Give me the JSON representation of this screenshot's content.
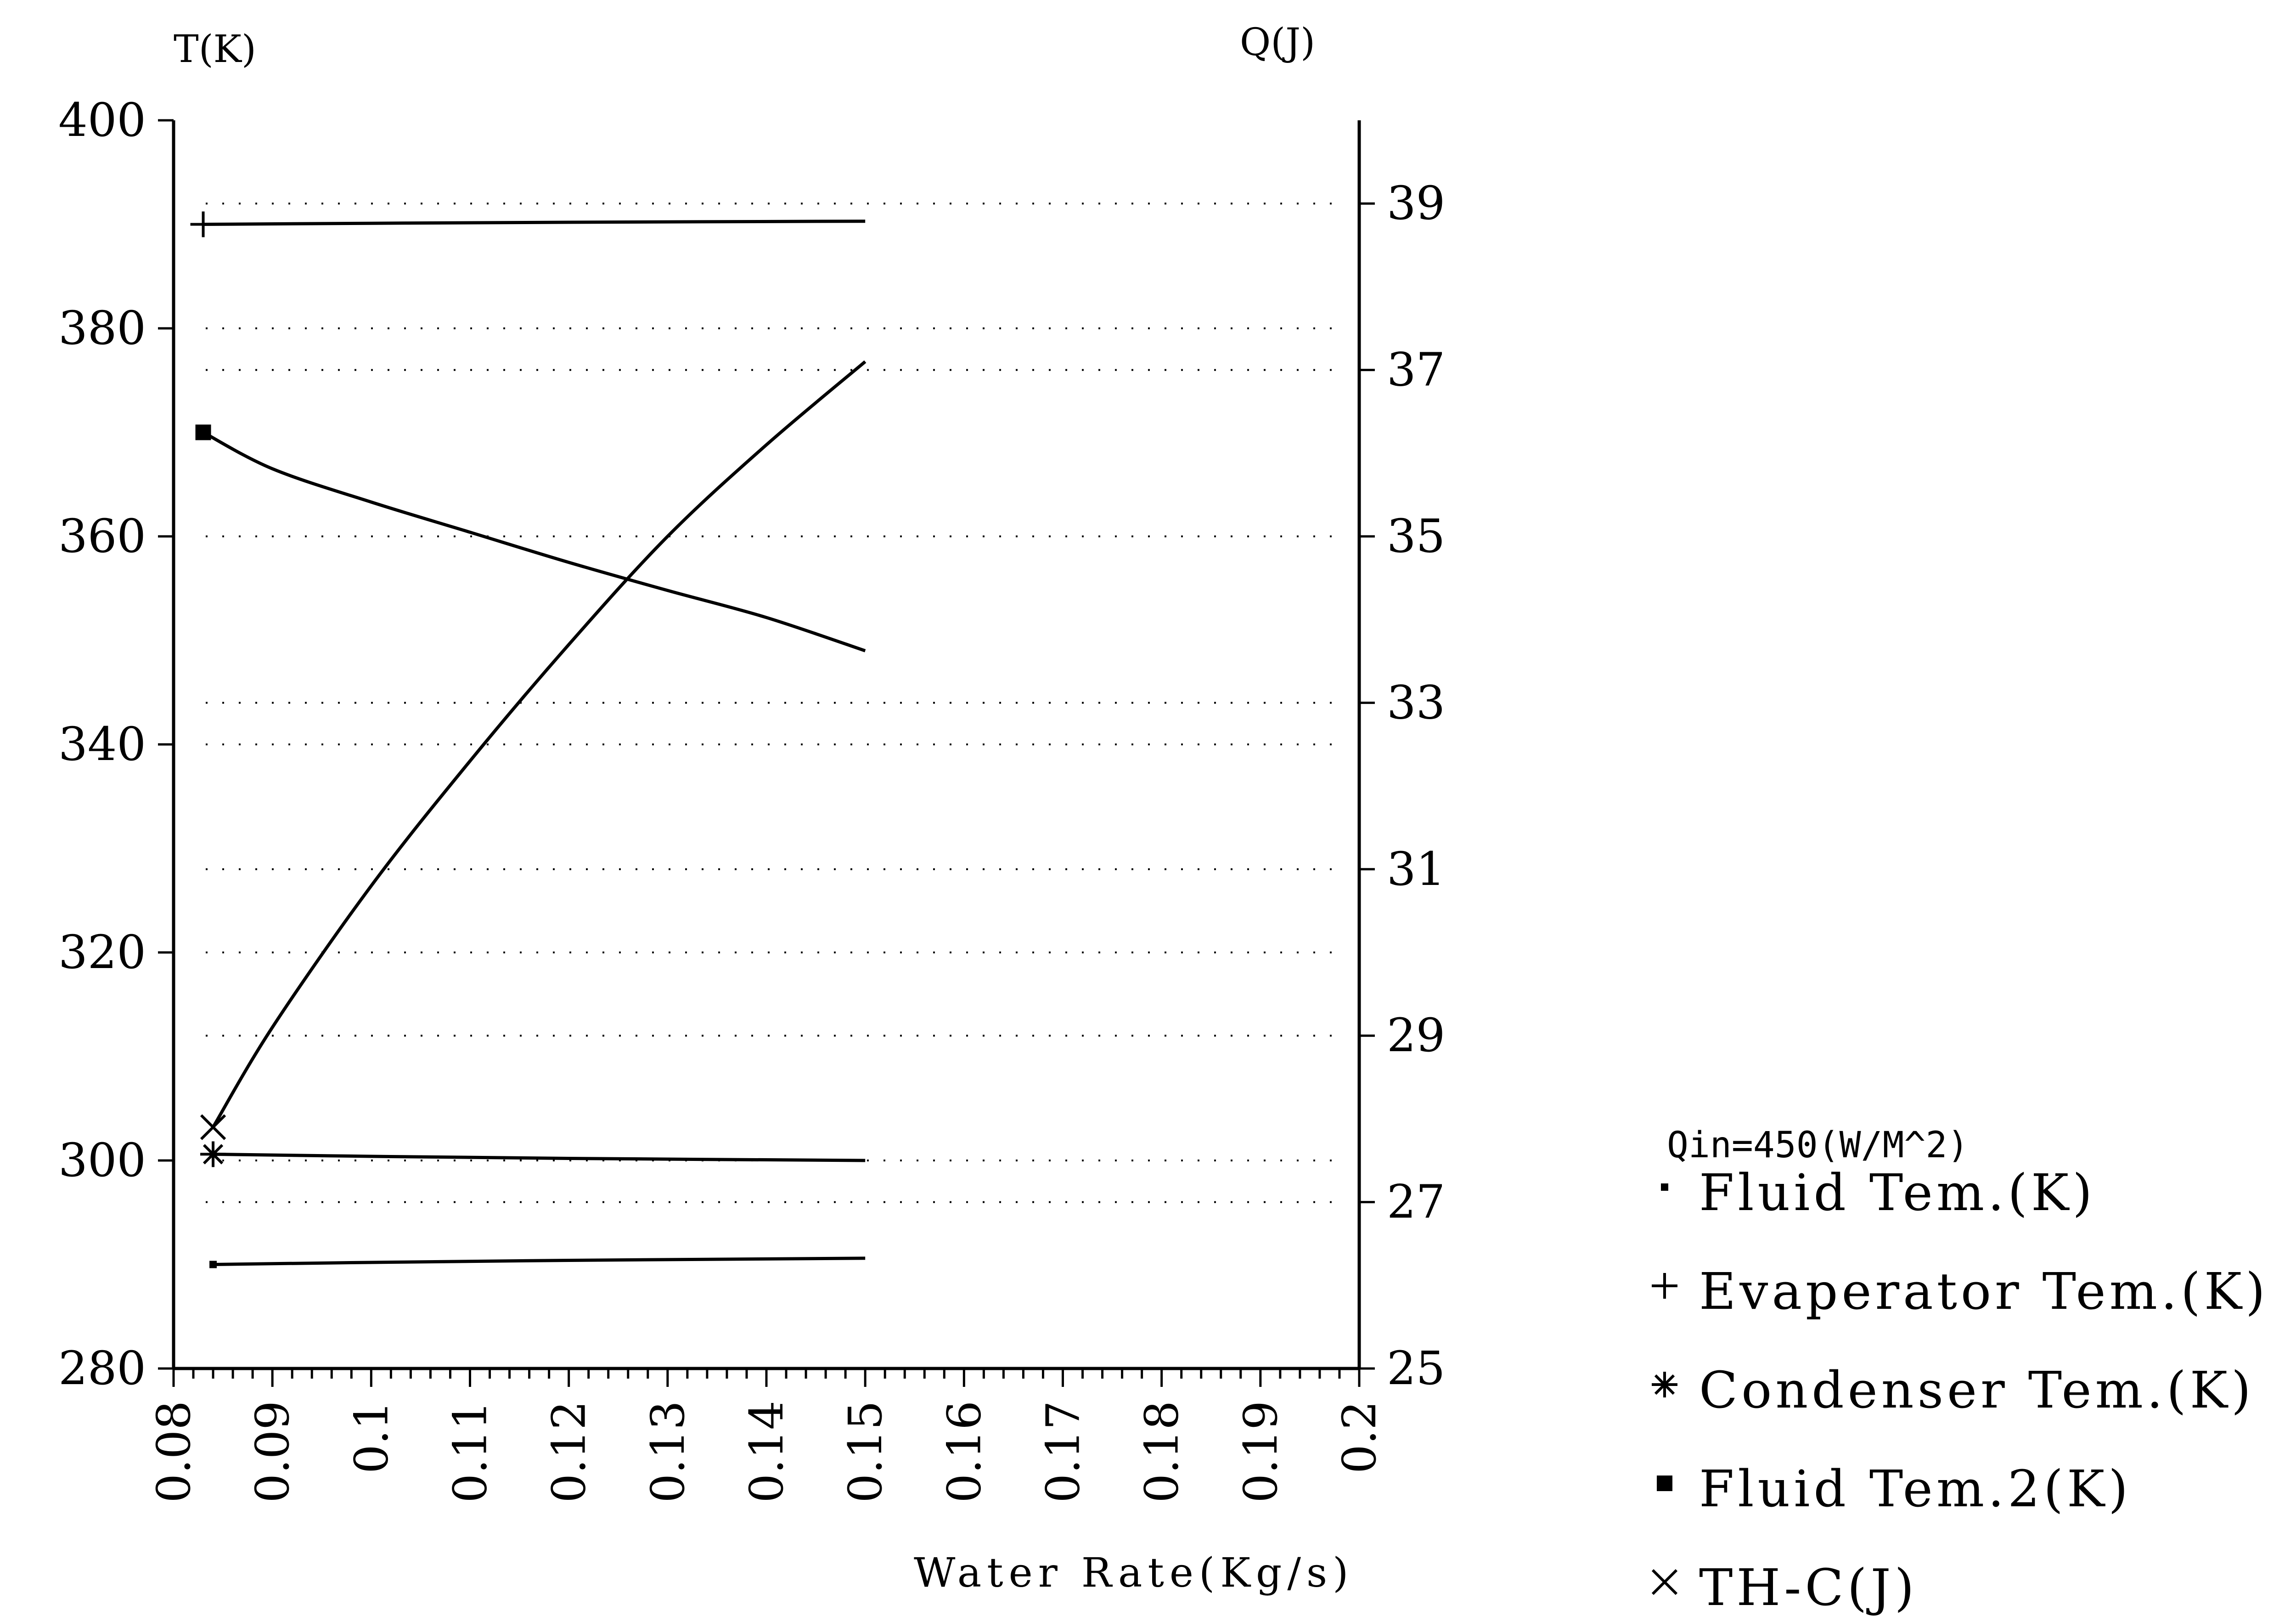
{
  "chart_data": {
    "type": "line",
    "title": "",
    "xlabel": "Water Rate(Kg/s)",
    "ylabel_left": "T(K)",
    "ylabel_right": "Q(J)",
    "xlim": [
      0.08,
      0.2
    ],
    "ylim_left": [
      280,
      400
    ],
    "ylim_right": [
      25,
      40
    ],
    "x_ticks": [
      "0.08",
      "0.09",
      "0.1",
      "0.11",
      "0.12",
      "0.13",
      "0.14",
      "0.15",
      "0.16",
      "0.17",
      "0.18",
      "0.19",
      "0.2"
    ],
    "y_ticks_left": [
      "280",
      "300",
      "320",
      "340",
      "360",
      "380",
      "400"
    ],
    "y_ticks_right": [
      "25",
      "27",
      "29",
      "31",
      "33",
      "35",
      "37",
      "39"
    ],
    "grid": "horizontal dotted",
    "legend_placement": "right-bottom",
    "legend_title": "Qin=450(W/M^2)",
    "series": [
      {
        "name": "Fluid Tem.(K)",
        "marker": "dot",
        "axis": "left",
        "x": [
          0.084,
          0.1,
          0.12,
          0.15
        ],
        "y": [
          290,
          290.2,
          290.4,
          290.6
        ]
      },
      {
        "name": "Evaperator Tem.(K)",
        "marker": "plus",
        "axis": "left",
        "x": [
          0.083,
          0.1,
          0.12,
          0.15
        ],
        "y": [
          390,
          390.1,
          390.2,
          390.3
        ]
      },
      {
        "name": "Condenser Tem.(K)",
        "marker": "asterisk",
        "axis": "left",
        "x": [
          0.084,
          0.1,
          0.12,
          0.15
        ],
        "y": [
          300.6,
          300.4,
          300.2,
          300
        ]
      },
      {
        "name": "Fluid Tem.2(K)",
        "marker": "square",
        "axis": "left",
        "x": [
          0.083,
          0.09,
          0.1,
          0.11,
          0.12,
          0.13,
          0.14,
          0.15
        ],
        "y": [
          370,
          366.5,
          363.3,
          360.4,
          357.5,
          354.8,
          352.2,
          349
        ]
      },
      {
        "name": "TH-C(J)",
        "marker": "x",
        "axis": "right",
        "x": [
          0.084,
          0.09,
          0.1,
          0.11,
          0.12,
          0.13,
          0.14,
          0.15
        ],
        "y": [
          27.9,
          29.1,
          30.8,
          32.3,
          33.7,
          35,
          36.1,
          37.1
        ]
      }
    ]
  }
}
